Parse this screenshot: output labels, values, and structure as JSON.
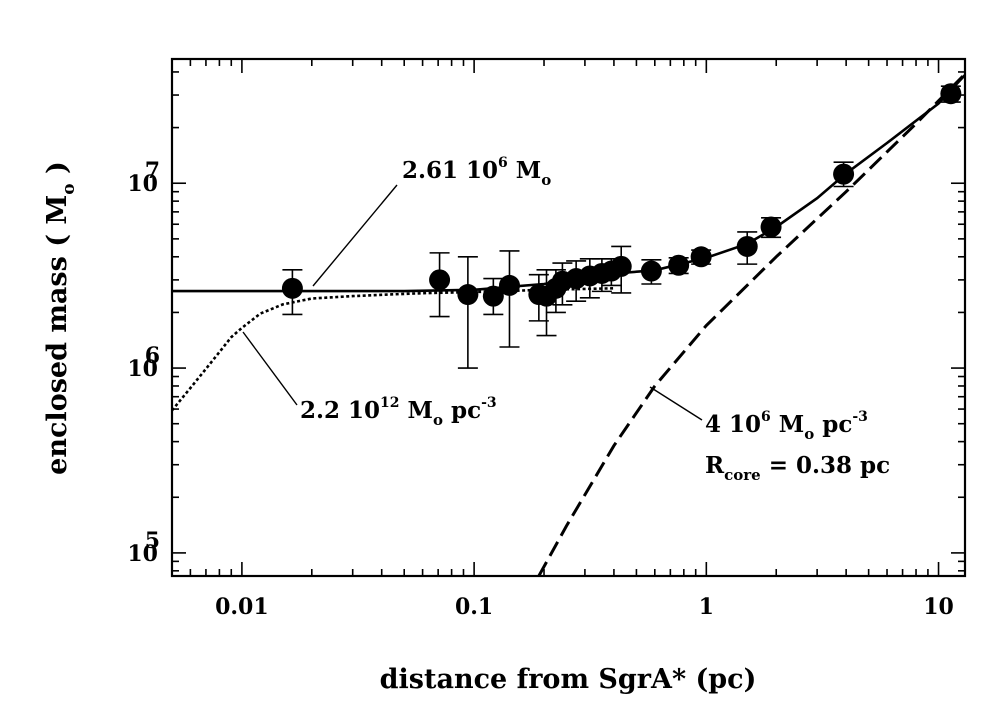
{
  "chart_data": {
    "type": "scatter",
    "x_scale": "log",
    "y_scale": "log",
    "xlim": [
      0.005,
      13
    ],
    "ylim": [
      75000,
      47000000
    ],
    "xlabel": "distance from SgrA* (pc)",
    "ylabel": {
      "main": "enclosed mass ( M",
      "sub": "o",
      "close": " )"
    },
    "x_ticks": [
      {
        "value": 0.01,
        "label": "0.01"
      },
      {
        "value": 0.1,
        "label": "0.1"
      },
      {
        "value": 1,
        "label": "1"
      },
      {
        "value": 10,
        "label": "10"
      }
    ],
    "y_ticks": [
      {
        "value": 100000,
        "base": "10",
        "exp": "5"
      },
      {
        "value": 1000000,
        "base": "10",
        "exp": "6"
      },
      {
        "value": 10000000,
        "base": "10",
        "exp": "7"
      }
    ],
    "grid": false,
    "series": [
      {
        "kind": "points-with-errorbars",
        "points": [
          {
            "x": 0.0165,
            "y": 2700000,
            "lo": 1950000,
            "hi": 3400000
          },
          {
            "x": 0.071,
            "y": 3000000,
            "lo": 1900000,
            "hi": 4200000
          },
          {
            "x": 0.094,
            "y": 2500000,
            "lo": 1000000,
            "hi": 4000000
          },
          {
            "x": 0.121,
            "y": 2450000,
            "lo": 1950000,
            "hi": 3050000
          },
          {
            "x": 0.142,
            "y": 2800000,
            "lo": 1300000,
            "hi": 4300000
          },
          {
            "x": 0.19,
            "y": 2500000,
            "lo": 1800000,
            "hi": 3200000
          },
          {
            "x": 0.205,
            "y": 2450000,
            "lo": 1500000,
            "hi": 3400000
          },
          {
            "x": 0.225,
            "y": 2700000,
            "lo": 2000000,
            "hi": 3400000
          },
          {
            "x": 0.24,
            "y": 2950000,
            "lo": 2200000,
            "hi": 3700000
          },
          {
            "x": 0.275,
            "y": 3050000,
            "lo": 2300000,
            "hi": 3800000
          },
          {
            "x": 0.315,
            "y": 3150000,
            "lo": 2400000,
            "hi": 3900000
          },
          {
            "x": 0.355,
            "y": 3250000,
            "lo": 2600000,
            "hi": 3900000
          },
          {
            "x": 0.39,
            "y": 3350000,
            "lo": 2800000,
            "hi": 3900000
          },
          {
            "x": 0.43,
            "y": 3550000,
            "lo": 2550000,
            "hi": 4550000
          },
          {
            "x": 0.58,
            "y": 3350000,
            "lo": 2850000,
            "hi": 3850000
          },
          {
            "x": 0.76,
            "y": 3600000,
            "lo": 3250000,
            "hi": 3950000
          },
          {
            "x": 0.95,
            "y": 4000000,
            "lo": 3650000,
            "hi": 4350000
          },
          {
            "x": 1.5,
            "y": 4550000,
            "lo": 3650000,
            "hi": 5450000
          },
          {
            "x": 1.9,
            "y": 5800000,
            "lo": 5100000,
            "hi": 6500000
          },
          {
            "x": 3.9,
            "y": 11200000,
            "lo": 9600000,
            "hi": 13000000
          },
          {
            "x": 11.3,
            "y": 30500000,
            "lo": 27500000,
            "hi": 33500000
          }
        ]
      },
      {
        "kind": "solid-line",
        "points": [
          [
            0.005,
            2610000
          ],
          [
            0.05,
            2610000
          ],
          [
            0.1,
            2650000
          ],
          [
            0.2,
            2850000
          ],
          [
            0.4,
            3250000
          ],
          [
            0.6,
            3380000
          ],
          [
            1.0,
            3950000
          ],
          [
            1.5,
            4700000
          ],
          [
            2.0,
            5800000
          ],
          [
            3.0,
            8300000
          ],
          [
            4.0,
            11300000
          ],
          [
            6.0,
            16500000
          ],
          [
            10.0,
            27000000
          ],
          [
            13.0,
            38500000
          ]
        ]
      },
      {
        "kind": "dotted-line",
        "points": [
          [
            0.005,
            590000
          ],
          [
            0.006,
            780000
          ],
          [
            0.007,
            990000
          ],
          [
            0.008,
            1220000
          ],
          [
            0.009,
            1470000
          ],
          [
            0.01,
            1650000
          ],
          [
            0.012,
            1970000
          ],
          [
            0.015,
            2210000
          ],
          [
            0.02,
            2380000
          ],
          [
            0.03,
            2450000
          ],
          [
            0.04,
            2490000
          ],
          [
            0.06,
            2540000
          ],
          [
            0.1,
            2580000
          ],
          [
            0.2,
            2650000
          ],
          [
            0.4,
            2700000
          ]
        ]
      },
      {
        "kind": "dashed-line",
        "points": [
          [
            0.19,
            75000
          ],
          [
            0.25,
            140000
          ],
          [
            0.4,
            380000
          ],
          [
            0.6,
            800000
          ],
          [
            1.0,
            1700000
          ],
          [
            2.0,
            4000000
          ],
          [
            4.0,
            9000000
          ],
          [
            8.0,
            21000000
          ],
          [
            13.0,
            39000000
          ]
        ]
      }
    ],
    "annotations": [
      {
        "id": "point-mass",
        "parts": [
          {
            "t": "2.61 10"
          },
          {
            "t": "6",
            "s": "sup"
          },
          {
            "t": " M"
          },
          {
            "t": "o",
            "s": "sub"
          }
        ]
      },
      {
        "id": "cusp-density",
        "parts": [
          {
            "t": "2.2 10"
          },
          {
            "t": "12",
            "s": "sup"
          },
          {
            "t": " M"
          },
          {
            "t": "o",
            "s": "sub"
          },
          {
            "t": " pc"
          },
          {
            "t": "-3",
            "s": "sup"
          }
        ]
      },
      {
        "id": "cluster-density",
        "parts": [
          {
            "t": "4 10"
          },
          {
            "t": "6",
            "s": "sup"
          },
          {
            "t": " M"
          },
          {
            "t": "o",
            "s": "sub"
          },
          {
            "t": " pc"
          },
          {
            "t": "-3",
            "s": "sup"
          }
        ]
      },
      {
        "id": "core-radius",
        "parts": [
          {
            "t": "R"
          },
          {
            "t": "core",
            "s": "sub"
          },
          {
            "t": " = 0.38 pc"
          }
        ]
      }
    ]
  }
}
